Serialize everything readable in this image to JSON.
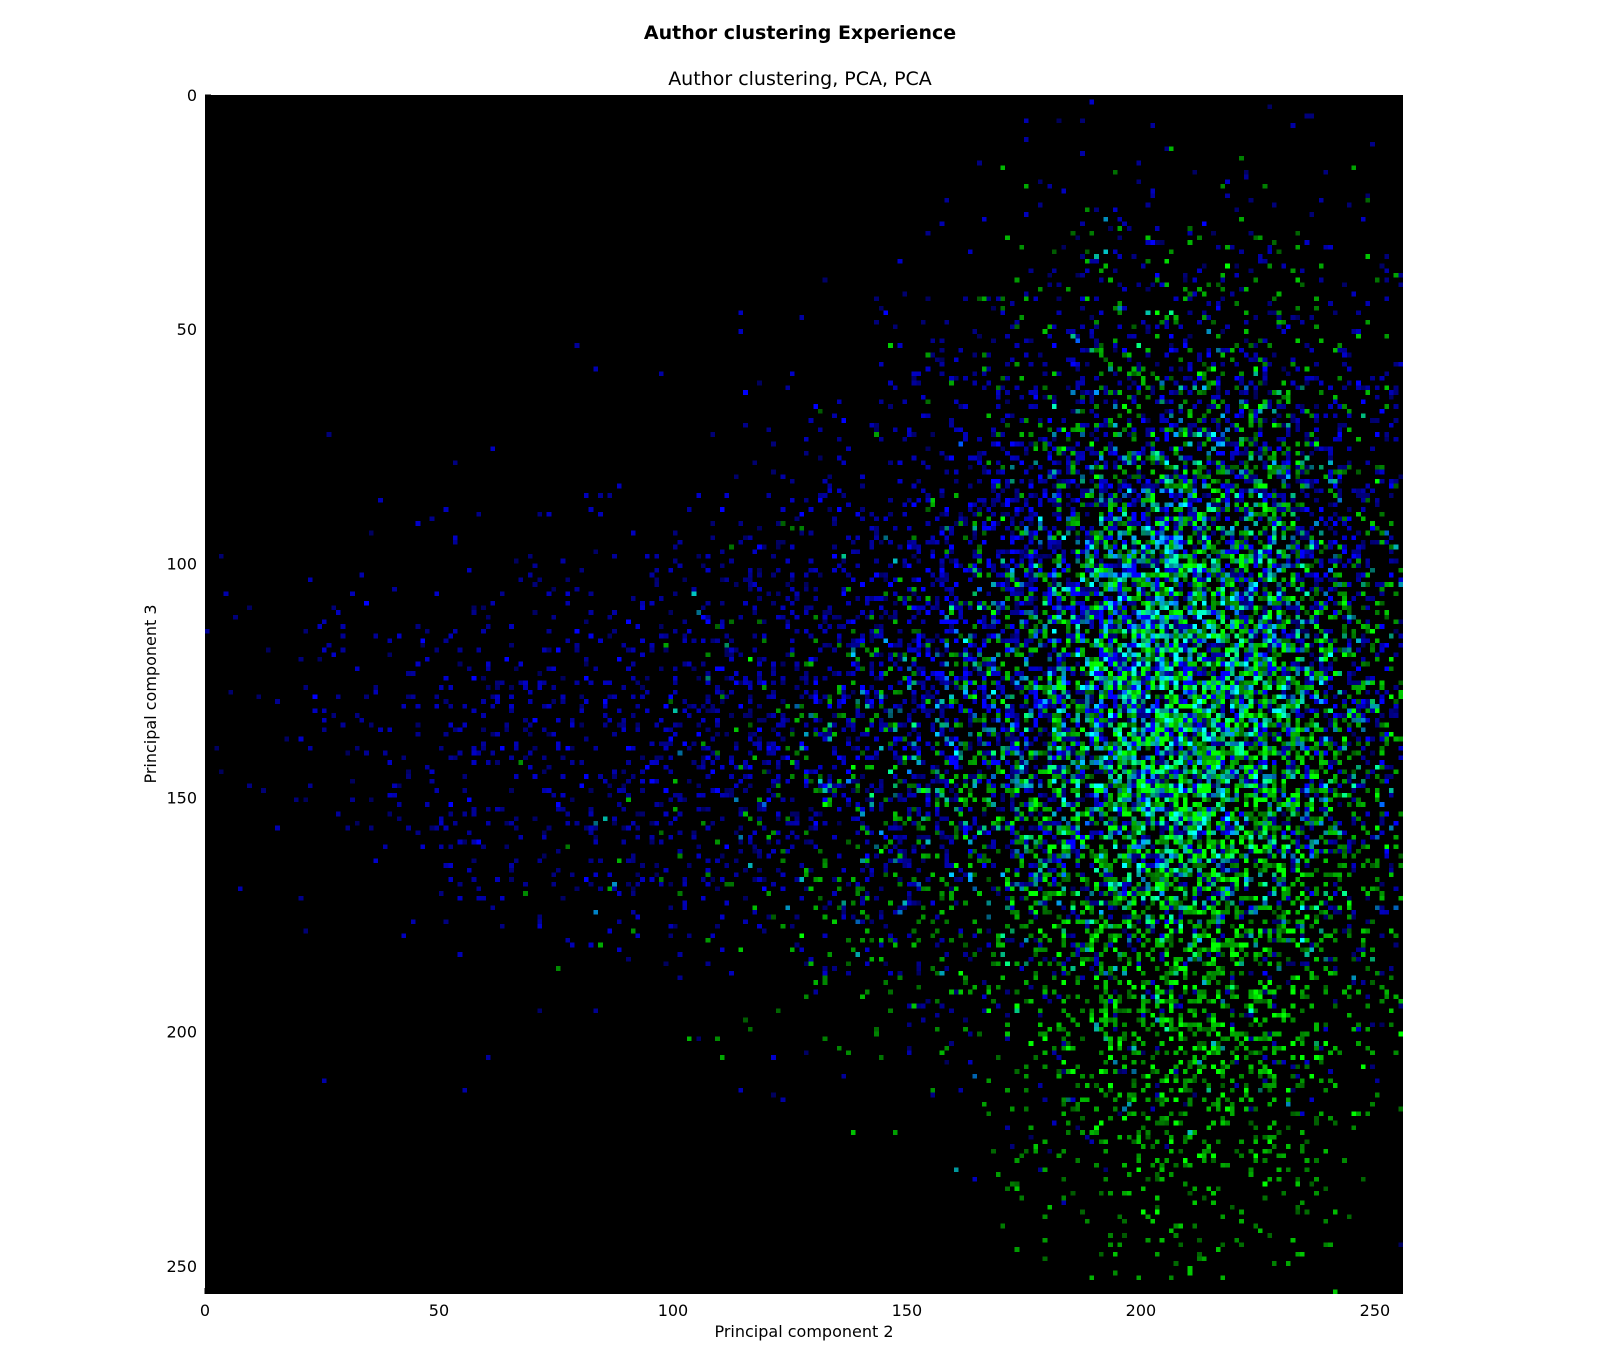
{
  "chart_data": {
    "type": "heatmap",
    "suptitle": "Author clustering Experience",
    "title": "Author clustering, PCA, PCA",
    "xlabel": "Principal component 2",
    "ylabel": "Principal component 3",
    "xlim": [
      0,
      256
    ],
    "ylim": [
      256,
      0
    ],
    "y_inverted": true,
    "x_ticks": [
      0,
      50,
      100,
      150,
      200,
      250
    ],
    "y_ticks": [
      0,
      50,
      100,
      150,
      200,
      250
    ],
    "x_tick_labels": [
      "0",
      "50",
      "100",
      "150",
      "200",
      "250"
    ],
    "y_tick_labels": [
      "0",
      "50",
      "100",
      "150",
      "200",
      "250"
    ],
    "background_color": "#000000",
    "grid": false,
    "series": [
      {
        "color": "#0000ff",
        "clusters": [
          {
            "cx": 205,
            "cy": 115,
            "sx": 30,
            "sy": 38,
            "count": 5200
          },
          {
            "cx": 150,
            "cy": 130,
            "sx": 35,
            "sy": 28,
            "count": 1500
          },
          {
            "cx": 90,
            "cy": 140,
            "sx": 30,
            "sy": 22,
            "count": 500
          },
          {
            "cx": 45,
            "cy": 125,
            "sx": 22,
            "sy": 18,
            "count": 160
          }
        ]
      },
      {
        "color": "#00ff00",
        "clusters": [
          {
            "cx": 210,
            "cy": 135,
            "sx": 22,
            "sy": 40,
            "count": 5500
          },
          {
            "cx": 210,
            "cy": 210,
            "sx": 18,
            "sy": 18,
            "count": 450
          },
          {
            "cx": 150,
            "cy": 150,
            "sx": 28,
            "sy": 25,
            "count": 600
          }
        ]
      }
    ]
  }
}
